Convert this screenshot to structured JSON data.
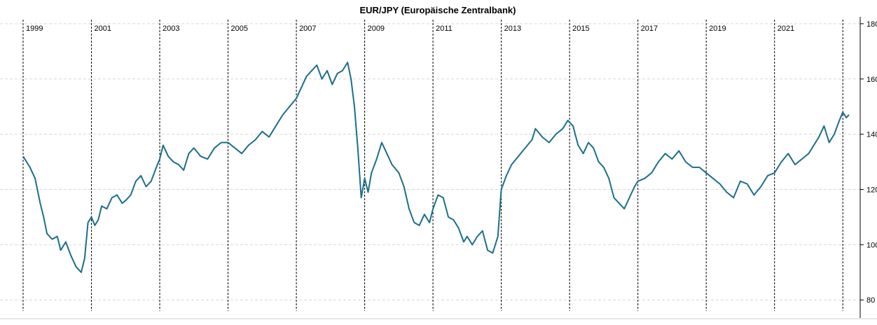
{
  "chart_data": {
    "type": "line",
    "title": "EUR/JPY (Europäische Zentralbank)",
    "xlabel": "",
    "ylabel": "",
    "xlim": [
      1999.0,
      2023.18
    ],
    "ylim": [
      76,
      182
    ],
    "yticks": [
      80,
      100,
      120,
      140,
      160,
      180
    ],
    "year_labels": [
      "1999",
      "2001",
      "2003",
      "2005",
      "2007",
      "2009",
      "2011",
      "2013",
      "2015",
      "2017",
      "2019",
      "2021"
    ],
    "year_marker_positions": [
      1999,
      2001,
      2003,
      2005,
      2007,
      2009,
      2011,
      2013,
      2015,
      2017,
      2019,
      2021,
      2023
    ],
    "grid": true,
    "legend": "none",
    "colors": {
      "series": "#1b6f8a",
      "grid": "#d8d8d8",
      "year_line": "#000000"
    },
    "series": [
      {
        "x": [
          1999.0,
          1999.1,
          1999.2,
          1999.35,
          1999.5,
          1999.6,
          1999.7,
          1999.85,
          2000.0,
          2000.1,
          2000.25,
          2000.4,
          2000.55,
          2000.7,
          2000.8,
          2000.9,
          2001.0,
          2001.1,
          2001.2,
          2001.3,
          2001.45,
          2001.6,
          2001.75,
          2001.9,
          2002.0,
          2002.15,
          2002.3,
          2002.45,
          2002.6,
          2002.75,
          2002.9,
          2003.0,
          2003.1,
          2003.25,
          2003.4,
          2003.55,
          2003.7,
          2003.85,
          2004.0,
          2004.2,
          2004.4,
          2004.6,
          2004.8,
          2005.0,
          2005.2,
          2005.4,
          2005.6,
          2005.8,
          2006.0,
          2006.2,
          2006.4,
          2006.6,
          2006.8,
          2007.0,
          2007.15,
          2007.3,
          2007.45,
          2007.6,
          2007.75,
          2007.9,
          2008.05,
          2008.2,
          2008.35,
          2008.5,
          2008.6,
          2008.7,
          2008.8,
          2008.9,
          2009.0,
          2009.1,
          2009.2,
          2009.35,
          2009.5,
          2009.65,
          2009.8,
          2010.0,
          2010.15,
          2010.3,
          2010.45,
          2010.6,
          2010.75,
          2010.9,
          2011.0,
          2011.15,
          2011.3,
          2011.45,
          2011.6,
          2011.75,
          2011.9,
          2012.0,
          2012.15,
          2012.3,
          2012.45,
          2012.6,
          2012.75,
          2012.9,
          2013.0,
          2013.15,
          2013.3,
          2013.5,
          2013.7,
          2013.9,
          2014.0,
          2014.2,
          2014.4,
          2014.6,
          2014.8,
          2014.95,
          2015.1,
          2015.25,
          2015.4,
          2015.55,
          2015.7,
          2015.85,
          2016.0,
          2016.15,
          2016.3,
          2016.45,
          2016.6,
          2016.75,
          2016.9,
          2017.0,
          2017.2,
          2017.4,
          2017.6,
          2017.8,
          2018.0,
          2018.2,
          2018.4,
          2018.6,
          2018.8,
          2019.0,
          2019.2,
          2019.4,
          2019.6,
          2019.8,
          2020.0,
          2020.2,
          2020.4,
          2020.6,
          2020.8,
          2021.0,
          2021.2,
          2021.4,
          2021.6,
          2021.8,
          2022.0,
          2022.15,
          2022.3,
          2022.45,
          2022.6,
          2022.75,
          2022.9,
          2023.0,
          2023.1,
          2023.18
        ],
        "values": [
          132,
          130,
          128,
          124,
          115,
          110,
          104,
          102,
          103,
          98,
          101,
          96,
          92,
          90,
          95,
          108,
          110,
          107,
          109,
          114,
          113,
          117,
          118,
          115,
          116,
          118,
          123,
          125,
          121,
          123,
          128,
          131,
          136,
          132,
          130,
          129,
          127,
          133,
          135,
          132,
          131,
          135,
          137,
          137,
          135,
          133,
          136,
          138,
          141,
          139,
          143,
          147,
          150,
          153,
          157,
          161,
          163,
          165,
          160,
          163,
          158,
          162,
          163,
          166,
          160,
          150,
          135,
          117,
          124,
          119,
          126,
          131,
          137,
          133,
          129,
          126,
          121,
          113,
          108,
          107,
          111,
          108,
          113,
          118,
          117,
          110,
          109,
          106,
          101,
          103,
          100,
          103,
          105,
          98,
          97,
          103,
          120,
          125,
          129,
          132,
          135,
          138,
          142,
          139,
          137,
          140,
          142,
          145,
          143,
          136,
          133,
          137,
          135,
          130,
          128,
          124,
          117,
          115,
          113,
          117,
          121,
          123,
          124,
          126,
          130,
          133,
          131,
          134,
          130,
          128,
          128,
          126,
          124,
          122,
          119,
          117,
          123,
          122,
          118,
          121,
          125,
          126,
          130,
          133,
          129,
          131,
          133,
          136,
          139,
          143,
          137,
          140,
          145,
          148,
          146,
          147
        ]
      }
    ]
  }
}
